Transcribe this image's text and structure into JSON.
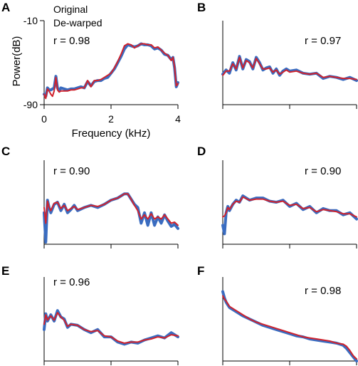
{
  "figure": {
    "legend": {
      "entries": [
        "Original",
        "De-warped"
      ]
    },
    "colors": {
      "original": "#3a6cc0",
      "dewarped": "#d0222c",
      "axis": "#000000"
    }
  },
  "chart_data": [
    {
      "type": "line",
      "panel": "A",
      "annotation": "r = 0.98",
      "xlabel": "Frequency (kHz)",
      "ylabel": "Power(dB)",
      "xlim": [
        0,
        4
      ],
      "ylim": [
        -90,
        -10
      ],
      "xticks": [
        "0",
        "2",
        "4"
      ],
      "yticks": [
        "-90",
        "-10"
      ],
      "x": [
        0,
        0.05,
        0.1,
        0.15,
        0.2,
        0.25,
        0.3,
        0.35,
        0.4,
        0.45,
        0.5,
        0.6,
        0.7,
        0.8,
        0.9,
        1.0,
        1.1,
        1.2,
        1.3,
        1.4,
        1.5,
        1.6,
        1.7,
        1.8,
        1.9,
        2.0,
        2.1,
        2.2,
        2.3,
        2.4,
        2.5,
        2.6,
        2.7,
        2.8,
        2.9,
        3.0,
        3.1,
        3.2,
        3.3,
        3.4,
        3.5,
        3.6,
        3.7,
        3.8,
        3.85,
        3.9,
        3.95,
        4.0
      ],
      "series": [
        {
          "name": "Original",
          "values": [
            -80,
            -82,
            -74,
            -76,
            -76,
            -75,
            -74,
            -63,
            -74,
            -77,
            -74,
            -75,
            -76,
            -75,
            -75,
            -74,
            -73,
            -74,
            -68,
            -72,
            -68,
            -67,
            -67,
            -65,
            -64,
            -60,
            -56,
            -50,
            -44,
            -37,
            -33,
            -34,
            -35,
            -34,
            -32,
            -33,
            -33,
            -34,
            -37,
            -36,
            -38,
            -42,
            -43,
            -47,
            -45,
            -55,
            -73,
            -69
          ]
        },
        {
          "name": "De-warped",
          "values": [
            -80,
            -84,
            -75,
            -77,
            -80,
            -82,
            -77,
            -64,
            -76,
            -78,
            -77,
            -77,
            -77,
            -76,
            -76,
            -75,
            -74,
            -74,
            -67,
            -73,
            -67,
            -67,
            -66,
            -64,
            -62,
            -60,
            -55,
            -49,
            -42,
            -34,
            -32,
            -33,
            -36,
            -34,
            -32,
            -32,
            -33,
            -33,
            -36,
            -35,
            -38,
            -41,
            -43,
            -48,
            -45,
            -54,
            -72,
            -70
          ]
        }
      ]
    },
    {
      "type": "line",
      "panel": "B",
      "annotation": "r = 0.97",
      "xlim": [
        0,
        4
      ],
      "ylim": [
        -90,
        -10
      ],
      "x": [
        0,
        0.1,
        0.2,
        0.3,
        0.4,
        0.5,
        0.6,
        0.7,
        0.8,
        0.9,
        1.0,
        1.1,
        1.2,
        1.3,
        1.4,
        1.5,
        1.6,
        1.7,
        1.8,
        1.9,
        2.0,
        2.2,
        2.4,
        2.6,
        2.8,
        3.0,
        3.2,
        3.4,
        3.6,
        3.8,
        4.0
      ],
      "series": [
        {
          "name": "Original",
          "values": [
            -61,
            -57,
            -60,
            -50,
            -57,
            -44,
            -56,
            -47,
            -49,
            -56,
            -45,
            -50,
            -57,
            -55,
            -54,
            -60,
            -56,
            -62,
            -58,
            -56,
            -58,
            -57,
            -60,
            -61,
            -60,
            -65,
            -63,
            -64,
            -66,
            -64,
            -67
          ]
        },
        {
          "name": "De-warped",
          "values": [
            -62,
            -58,
            -58,
            -51,
            -56,
            -45,
            -55,
            -48,
            -50,
            -55,
            -46,
            -51,
            -56,
            -56,
            -55,
            -59,
            -57,
            -61,
            -59,
            -57,
            -59,
            -58,
            -60,
            -61,
            -60,
            -64,
            -63,
            -64,
            -65,
            -65,
            -66
          ]
        }
      ]
    },
    {
      "type": "line",
      "panel": "C",
      "annotation": "r = 0.90",
      "xlim": [
        0,
        4
      ],
      "ylim": [
        -90,
        -10
      ],
      "x": [
        0,
        0.05,
        0.1,
        0.15,
        0.2,
        0.3,
        0.4,
        0.5,
        0.6,
        0.7,
        0.8,
        0.9,
        1.0,
        1.2,
        1.4,
        1.6,
        1.8,
        2.0,
        2.2,
        2.4,
        2.5,
        2.6,
        2.7,
        2.8,
        2.9,
        3.0,
        3.1,
        3.2,
        3.3,
        3.4,
        3.5,
        3.6,
        3.7,
        3.8,
        3.9,
        4.0
      ],
      "series": [
        {
          "name": "Original",
          "values": [
            -60,
            -88,
            -48,
            -55,
            -60,
            -52,
            -50,
            -58,
            -52,
            -60,
            -57,
            -53,
            -58,
            -55,
            -53,
            -55,
            -52,
            -48,
            -46,
            -42,
            -42,
            -47,
            -52,
            -55,
            -70,
            -60,
            -72,
            -60,
            -72,
            -64,
            -70,
            -62,
            -68,
            -73,
            -71,
            -75
          ]
        },
        {
          "name": "De-warped",
          "values": [
            -55,
            -70,
            -49,
            -55,
            -58,
            -51,
            -50,
            -56,
            -53,
            -58,
            -56,
            -54,
            -57,
            -55,
            -53,
            -54,
            -52,
            -48,
            -46,
            -42,
            -42,
            -47,
            -53,
            -58,
            -66,
            -62,
            -66,
            -61,
            -66,
            -64,
            -66,
            -62,
            -66,
            -70,
            -69,
            -72
          ]
        }
      ]
    },
    {
      "type": "line",
      "panel": "D",
      "annotation": "r = 0.90",
      "xlim": [
        0,
        4
      ],
      "ylim": [
        -90,
        -10
      ],
      "x": [
        0,
        0.05,
        0.1,
        0.15,
        0.2,
        0.3,
        0.4,
        0.5,
        0.6,
        0.8,
        1.0,
        1.2,
        1.4,
        1.6,
        1.8,
        2.0,
        2.2,
        2.4,
        2.6,
        2.8,
        3.0,
        3.2,
        3.4,
        3.6,
        3.8,
        4.0
      ],
      "series": [
        {
          "name": "Original",
          "values": [
            -72,
            -80,
            -60,
            -54,
            -58,
            -52,
            -48,
            -50,
            -44,
            -48,
            -46,
            -46,
            -49,
            -50,
            -48,
            -54,
            -51,
            -57,
            -54,
            -60,
            -56,
            -58,
            -58,
            -62,
            -60,
            -66
          ]
        },
        {
          "name": "De-warped",
          "values": [
            -64,
            -63,
            -60,
            -55,
            -57,
            -52,
            -49,
            -50,
            -45,
            -48,
            -47,
            -47,
            -49,
            -50,
            -49,
            -53,
            -52,
            -56,
            -55,
            -59,
            -57,
            -58,
            -59,
            -61,
            -61,
            -64
          ]
        }
      ]
    },
    {
      "type": "line",
      "panel": "E",
      "annotation": "r = 0.96",
      "xlim": [
        0,
        4
      ],
      "ylim": [
        -90,
        -10
      ],
      "x": [
        0,
        0.05,
        0.1,
        0.2,
        0.3,
        0.4,
        0.5,
        0.6,
        0.7,
        0.8,
        1.0,
        1.2,
        1.4,
        1.6,
        1.8,
        2.0,
        2.2,
        2.4,
        2.6,
        2.8,
        3.0,
        3.2,
        3.4,
        3.6,
        3.8,
        4.0
      ],
      "series": [
        {
          "name": "Original",
          "values": [
            -60,
            -45,
            -52,
            -46,
            -52,
            -42,
            -48,
            -50,
            -58,
            -55,
            -56,
            -60,
            -63,
            -60,
            -67,
            -67,
            -72,
            -74,
            -72,
            -73,
            -70,
            -68,
            -66,
            -68,
            -63,
            -67
          ]
        },
        {
          "name": "De-warped",
          "values": [
            -55,
            -46,
            -51,
            -47,
            -51,
            -44,
            -48,
            -51,
            -57,
            -55,
            -56,
            -60,
            -62,
            -61,
            -66,
            -67,
            -71,
            -73,
            -72,
            -72,
            -70,
            -69,
            -67,
            -68,
            -65,
            -66
          ]
        }
      ]
    },
    {
      "type": "line",
      "panel": "F",
      "annotation": "r = 0.98",
      "xlim": [
        0,
        4
      ],
      "ylim": [
        -90,
        -10
      ],
      "x": [
        0,
        0.05,
        0.1,
        0.2,
        0.4,
        0.6,
        0.8,
        1.0,
        1.2,
        1.4,
        1.6,
        1.8,
        2.0,
        2.2,
        2.4,
        2.6,
        2.8,
        3.0,
        3.2,
        3.4,
        3.6,
        3.7,
        3.8,
        3.9,
        4.0
      ],
      "series": [
        {
          "name": "Original",
          "values": [
            -24,
            -30,
            -34,
            -39,
            -43,
            -47,
            -50,
            -53,
            -56,
            -58,
            -60,
            -62,
            -64,
            -66,
            -67,
            -69,
            -70,
            -71,
            -72,
            -73,
            -75,
            -78,
            -82,
            -86,
            -90
          ]
        },
        {
          "name": "De-warped",
          "values": [
            -28,
            -31,
            -33,
            -38,
            -42,
            -46,
            -50,
            -53,
            -55,
            -57,
            -59,
            -61,
            -63,
            -65,
            -67,
            -68,
            -69,
            -70,
            -71,
            -73,
            -74,
            -76,
            -80,
            -85,
            -88
          ]
        }
      ]
    }
  ]
}
